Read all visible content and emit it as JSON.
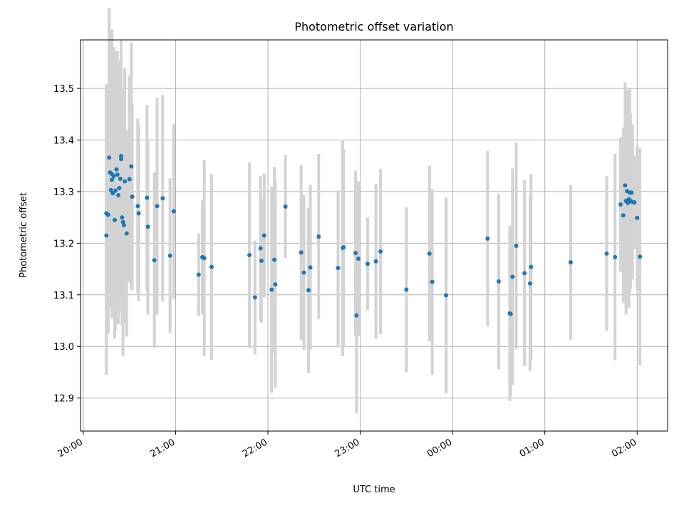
{
  "chart_data": {
    "type": "scatter",
    "title": "Photometric offset variation",
    "xlabel": "UTC time",
    "ylabel": "Photometric offset",
    "x_tick_labels": [
      "20:00",
      "21:00",
      "22:00",
      "23:00",
      "00:00",
      "01:00",
      "02:00"
    ],
    "y_tick_labels": [
      "12.9",
      "13.0",
      "13.1",
      "13.2",
      "13.3",
      "13.4",
      "13.5"
    ],
    "xlim_hours": [
      19.97,
      26.33
    ],
    "ylim": [
      12.836,
      13.594
    ],
    "grid": true,
    "marker_color": "#1f77b4",
    "errorbar_color": "#d3d3d3",
    "series": [
      {
        "x_hours": [
          20.25,
          20.25,
          20.27,
          20.28,
          20.29,
          20.3,
          20.31,
          20.31,
          20.32,
          20.33,
          20.34,
          20.35,
          20.36,
          20.37,
          20.38,
          20.39,
          20.4,
          20.41,
          20.41,
          20.42,
          20.43,
          20.44,
          20.45,
          20.47,
          20.5,
          20.52,
          20.53,
          20.53,
          20.59,
          20.6,
          20.69,
          20.7,
          20.77,
          20.8,
          20.86,
          20.94,
          20.98,
          21.25,
          21.29,
          21.31,
          21.39,
          21.8,
          21.86,
          21.92,
          21.93,
          21.96,
          22.04,
          22.07,
          22.08,
          22.19,
          22.36,
          22.39,
          22.44,
          22.46,
          22.55,
          22.76,
          22.81,
          22.82,
          22.95,
          22.96,
          22.98,
          23.08,
          23.17,
          23.22,
          23.5,
          23.75,
          23.78,
          23.93,
          24.38,
          24.5,
          24.62,
          24.63,
          24.65,
          24.69,
          24.78,
          24.84,
          24.85,
          25.28,
          25.67,
          25.76,
          25.82,
          25.85,
          25.87,
          25.88,
          25.89,
          25.9,
          25.91,
          25.92,
          25.93,
          25.94,
          25.95,
          25.97,
          26.0,
          26.03
        ],
        "y": [
          13.215,
          13.258,
          13.255,
          13.366,
          13.337,
          13.303,
          13.334,
          13.323,
          13.297,
          13.33,
          13.245,
          13.302,
          13.343,
          13.333,
          13.293,
          13.307,
          13.325,
          13.369,
          13.363,
          13.25,
          13.241,
          13.235,
          13.32,
          13.219,
          13.324,
          13.349,
          13.29,
          13.29,
          13.272,
          13.258,
          13.288,
          13.232,
          13.167,
          13.272,
          13.287,
          13.176,
          13.262,
          13.139,
          13.173,
          13.171,
          13.154,
          13.177,
          13.095,
          13.19,
          13.166,
          13.215,
          13.11,
          13.168,
          13.12,
          13.271,
          13.182,
          13.143,
          13.109,
          13.153,
          13.213,
          13.152,
          13.191,
          13.192,
          13.181,
          13.06,
          13.17,
          13.16,
          13.165,
          13.184,
          13.11,
          13.18,
          13.125,
          13.099,
          13.209,
          13.126,
          13.064,
          13.063,
          13.135,
          13.195,
          13.142,
          13.122,
          13.154,
          13.163,
          13.18,
          13.173,
          13.275,
          13.254,
          13.312,
          13.282,
          13.301,
          13.278,
          13.285,
          13.298,
          13.282,
          13.298,
          13.28,
          13.279,
          13.249,
          13.174
        ],
        "err": [
          0.27,
          0.25,
          0.23,
          0.29,
          0.24,
          0.22,
          0.28,
          0.26,
          0.21,
          0.25,
          0.23,
          0.27,
          0.2,
          0.24,
          0.25,
          0.24,
          0.23,
          0.19,
          0.23,
          0.21,
          0.26,
          0.19,
          0.22,
          0.2,
          0.2,
          0.24,
          0.17,
          0.18,
          0.17,
          0.17,
          0.18,
          0.17,
          0.17,
          0.21,
          0.2,
          0.15,
          0.17,
          0.08,
          0.11,
          0.19,
          0.18,
          0.18,
          0.11,
          0.14,
          0.12,
          0.12,
          0.2,
          0.18,
          0.2,
          0.1,
          0.17,
          0.15,
          0.16,
          0.16,
          0.16,
          0.15,
          0.21,
          0.19,
          0.16,
          0.19,
          0.15,
          0.09,
          0.15,
          0.16,
          0.16,
          0.17,
          0.18,
          0.19,
          0.17,
          0.17,
          0.17,
          0.16,
          0.21,
          0.2,
          0.18,
          0.17,
          0.18,
          0.15,
          0.15,
          0.2,
          0.13,
          0.17,
          0.2,
          0.22,
          0.19,
          0.17,
          0.21,
          0.2,
          0.17,
          0.13,
          0.15,
          0.09,
          0.14,
          0.21
        ]
      }
    ]
  }
}
